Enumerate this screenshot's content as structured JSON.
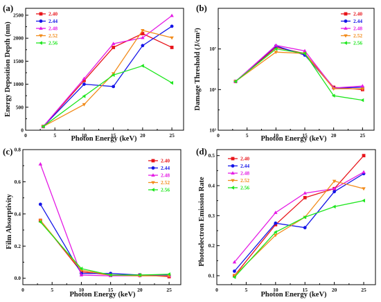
{
  "chart_data": [
    {
      "type": "line",
      "panel_label": "(a)",
      "xlabel": "Photon Energy (keV)",
      "ylabel": "Energy Deposition Depth (nm)",
      "xlim": [
        0,
        27
      ],
      "ylim": [
        0,
        2650
      ],
      "yscale": "linear",
      "x_ticks": [
        0,
        5,
        10,
        15,
        20,
        25
      ],
      "y_ticks": [
        0,
        500,
        1000,
        1500,
        2000,
        2500
      ],
      "x_tick_labels": [
        "0",
        "5",
        "10",
        "15",
        "20",
        "25"
      ],
      "y_tick_labels": [
        "0",
        "500",
        "1000",
        "1500",
        "2000",
        "2500"
      ],
      "legend_position": "top-left",
      "x": [
        3,
        10,
        15,
        20,
        25
      ],
      "series": [
        {
          "name": "2.40",
          "color": "#e8141a",
          "marker": "square",
          "values": [
            80,
            1080,
            1800,
            2100,
            1800
          ]
        },
        {
          "name": "2.44",
          "color": "#1414e8",
          "marker": "circle",
          "values": [
            80,
            1000,
            950,
            1840,
            2260
          ]
        },
        {
          "name": "2.48",
          "color": "#e41ae4",
          "marker": "triangle-up",
          "values": [
            80,
            1120,
            1880,
            2010,
            2490
          ]
        },
        {
          "name": "2.52",
          "color": "#f28b1a",
          "marker": "triangle-down",
          "values": [
            80,
            560,
            1230,
            2170,
            2010
          ]
        },
        {
          "name": "2.56",
          "color": "#1ee61e",
          "marker": "triangle-left",
          "values": [
            80,
            740,
            1200,
            1400,
            1030
          ]
        }
      ]
    },
    {
      "type": "line",
      "panel_label": "(b)",
      "xlabel": "Photon Energy (keV)",
      "ylabel": "Damage Threshold (J/cm²)",
      "xlim": [
        0,
        27
      ],
      "ylim": [
        1000,
        1000000000
      ],
      "yscale": "log",
      "x_ticks": [
        0,
        5,
        10,
        15,
        20,
        25
      ],
      "y_ticks": [
        1000,
        100000,
        10000000
      ],
      "x_tick_labels": [
        "0",
        "5",
        "10",
        "15",
        "20",
        "25"
      ],
      "y_tick_labels": [
        "10³",
        "10⁵",
        "10⁷"
      ],
      "legend_position": "top-right",
      "x": [
        3,
        10,
        15,
        20,
        25
      ],
      "series": [
        {
          "name": "2.40",
          "color": "#e8141a",
          "marker": "square",
          "values": [
            250000,
            12000000,
            6000000,
            130000,
            100000
          ]
        },
        {
          "name": "2.44",
          "color": "#1414e8",
          "marker": "circle",
          "values": [
            250000,
            14000000,
            5000000,
            120000,
            130000
          ]
        },
        {
          "name": "2.48",
          "color": "#e41ae4",
          "marker": "triangle-up",
          "values": [
            250000,
            15000000,
            8000000,
            120000,
            150000
          ]
        },
        {
          "name": "2.52",
          "color": "#f28b1a",
          "marker": "triangle-down",
          "values": [
            250000,
            7000000,
            6000000,
            110000,
            110000
          ]
        },
        {
          "name": "2.56",
          "color": "#1ee61e",
          "marker": "triangle-left",
          "values": [
            250000,
            10000000,
            6000000,
            50000,
            30000
          ]
        }
      ]
    },
    {
      "type": "line",
      "panel_label": "(c)",
      "xlabel": "Photon Energy (keV)",
      "ylabel": "Film Absorptivity",
      "xlim": [
        0,
        27
      ],
      "ylim": [
        -0.04,
        0.8
      ],
      "yscale": "linear",
      "x_ticks": [
        0,
        5,
        10,
        15,
        20,
        25
      ],
      "y_ticks": [
        0.0,
        0.2,
        0.4,
        0.6,
        0.8
      ],
      "x_tick_labels": [
        "0",
        "5",
        "10",
        "15",
        "20",
        "25"
      ],
      "y_tick_labels": [
        "0.0",
        "0.2",
        "0.4",
        "0.6",
        "0.8"
      ],
      "legend_position": "top-right",
      "x": [
        3,
        10,
        15,
        20,
        25
      ],
      "series": [
        {
          "name": "2.40",
          "color": "#e8141a",
          "marker": "square",
          "values": [
            0.36,
            0.04,
            0.02,
            0.02,
            0.01
          ]
        },
        {
          "name": "2.44",
          "color": "#1414e8",
          "marker": "circle",
          "values": [
            0.46,
            0.03,
            0.03,
            0.02,
            0.02
          ]
        },
        {
          "name": "2.48",
          "color": "#e41ae4",
          "marker": "triangle-up",
          "values": [
            0.71,
            0.02,
            0.015,
            0.015,
            0.015
          ]
        },
        {
          "name": "2.52",
          "color": "#f28b1a",
          "marker": "triangle-down",
          "values": [
            0.36,
            0.05,
            0.02,
            0.015,
            0.015
          ]
        },
        {
          "name": "2.56",
          "color": "#1ee61e",
          "marker": "triangle-left",
          "values": [
            0.35,
            0.06,
            0.02,
            0.02,
            0.025
          ]
        }
      ]
    },
    {
      "type": "line",
      "panel_label": "(d)",
      "xlabel": "Photon Energy (keV)",
      "ylabel": "Photoelectron Emission Rate",
      "xlim": [
        0,
        27
      ],
      "ylim": [
        0.07,
        0.52
      ],
      "yscale": "linear",
      "x_ticks": [
        0,
        5,
        10,
        15,
        20,
        25
      ],
      "y_ticks": [
        0.1,
        0.2,
        0.3,
        0.4,
        0.5
      ],
      "x_tick_labels": [
        "0",
        "5",
        "10",
        "15",
        "20",
        "25"
      ],
      "y_tick_labels": [
        "0.1",
        "0.2",
        "0.3",
        "0.4",
        "0.5"
      ],
      "legend_position": "top-left",
      "x": [
        3,
        10,
        15,
        20,
        25
      ],
      "series": [
        {
          "name": "2.40",
          "color": "#e8141a",
          "marker": "square",
          "values": [
            0.1,
            0.27,
            0.36,
            0.39,
            0.5
          ]
        },
        {
          "name": "2.44",
          "color": "#1414e8",
          "marker": "circle",
          "values": [
            0.115,
            0.275,
            0.26,
            0.38,
            0.44
          ]
        },
        {
          "name": "2.48",
          "color": "#e41ae4",
          "marker": "triangle-up",
          "values": [
            0.145,
            0.31,
            0.375,
            0.39,
            0.445
          ]
        },
        {
          "name": "2.52",
          "color": "#f28b1a",
          "marker": "triangle-down",
          "values": [
            0.1,
            0.235,
            0.295,
            0.415,
            0.39
          ]
        },
        {
          "name": "2.56",
          "color": "#1ee61e",
          "marker": "triangle-left",
          "values": [
            0.095,
            0.245,
            0.295,
            0.33,
            0.35
          ]
        }
      ]
    }
  ]
}
